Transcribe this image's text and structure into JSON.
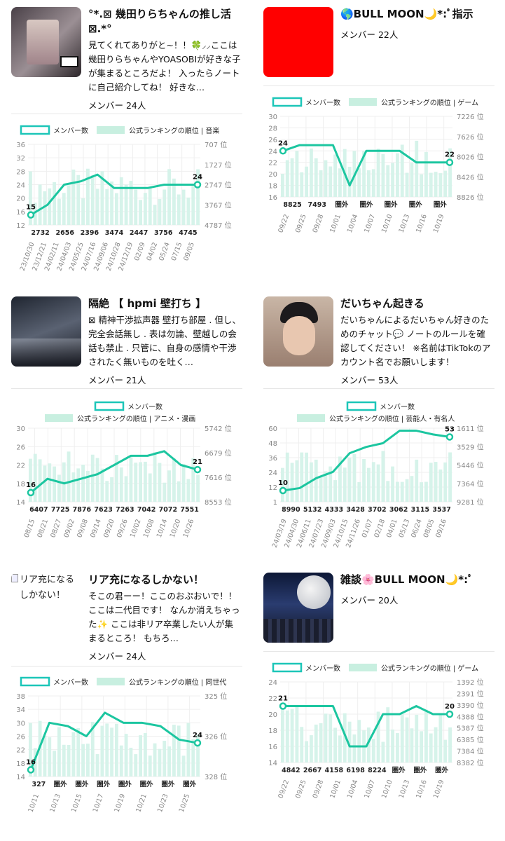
{
  "cards": [
    {
      "title": "°*.⊠ 幾田りらちゃんの推し活 ⊠.*°",
      "description": "見てくれてありがと~！！🍀⸝⸝ここは幾田りらちゃんやYOASOBIが好きな子が集まるところだよ！ 入ったらノートに自己紹介してね！ 好きな…",
      "members": "メンバー 24人",
      "thumb_color": "#8a7f86",
      "chart_data": {
        "type": "line",
        "legend": [
          "メンバー数",
          "公式ランキングの順位 | 音楽"
        ],
        "series": [
          {
            "name": "メンバー数",
            "values": [
              15,
              18,
              24,
              25,
              27,
              23,
              23,
              23,
              24,
              24,
              24
            ],
            "start_label": "15",
            "end_label": "24"
          }
        ],
        "y_ticks": [
          "36",
          "32",
          "28",
          "24",
          "20",
          "16",
          "12"
        ],
        "rank_ticks": [
          "707 位",
          "1727 位",
          "2747 位",
          "3767 位",
          "4787 位"
        ],
        "rank_labels": [
          "2732",
          "2656",
          "2396",
          "3474",
          "2447",
          "3756",
          "4745"
        ],
        "x_labels": [
          "23/10/30",
          "23/12/21",
          "24/02/11",
          "24/04/03",
          "24/05/25",
          "24/07/16",
          "24/09/06",
          "24/10/28",
          "24/12/19",
          "02/09",
          "04/02",
          "05/24",
          "07/15",
          "09/05"
        ]
      }
    },
    {
      "title": "🌎BULL MOON🌙*:ﾟ指示",
      "description": "",
      "members": "メンバー 22人",
      "thumb_color": "#ff0000",
      "chart_data": {
        "type": "line",
        "legend": [
          "メンバー数",
          "公式ランキングの順位 | ゲーム"
        ],
        "series": [
          {
            "name": "メンバー数",
            "values": [
              24,
              25,
              25,
              25,
              18,
              24,
              24,
              24,
              22,
              22,
              22
            ],
            "start_label": "24",
            "end_label": "22"
          }
        ],
        "y_ticks": [
          "30",
          "28",
          "26",
          "24",
          "22",
          "20",
          "18",
          "16"
        ],
        "rank_ticks": [
          "7226 位",
          "7626 位",
          "8026 位",
          "8426 位",
          "8826 位"
        ],
        "rank_labels": [
          "8825",
          "7493",
          "圏外",
          "圏外",
          "圏外",
          "圏外",
          "圏外"
        ],
        "x_labels": [
          "09/22",
          "09/25",
          "09/28",
          "10/01",
          "10/04",
          "10/07",
          "10/10",
          "10/13",
          "10/16",
          "10/19"
        ]
      }
    },
    {
      "title": "隔絶 【 hpmi 壁打ち 】",
      "description": "⊠ 精神干渉拡声器 壁打ち部屋 . 但し、完全会話無し . 表は勿論、壁越しの会話も禁止 . 只管に、自身の感情や干渉されたく無いものを吐く…",
      "members": "メンバー 21人",
      "thumb_color": "#3a3f4a",
      "chart_data": {
        "type": "line",
        "legend": [
          "メンバー数",
          "公式ランキングの順位 | アニメ・漫画"
        ],
        "series": [
          {
            "name": "メンバー数",
            "values": [
              16,
              19,
              18,
              19,
              20,
              22,
              24,
              24,
              25,
              22,
              21
            ],
            "start_label": "16",
            "end_label": "21"
          }
        ],
        "y_ticks": [
          "30",
          "26",
          "22",
          "18",
          "14"
        ],
        "rank_ticks": [
          "5742 位",
          "6679 位",
          "7616 位",
          "8553 位"
        ],
        "rank_labels": [
          "6407",
          "7725",
          "7876",
          "7623",
          "7263",
          "7042",
          "7072",
          "7551"
        ],
        "x_labels": [
          "08/15",
          "08/21",
          "08/27",
          "09/02",
          "09/08",
          "09/14",
          "09/20",
          "09/26",
          "10/02",
          "10/08",
          "10/14",
          "10/20",
          "10/26"
        ]
      }
    },
    {
      "title": "だいちゃん起きる",
      "description": "だいちゃんによるだいちゃん好きのためのチャット💬 ノートのルールを確認してください！ ※名前はTikTokのアカウント名でお願いします！",
      "members": "メンバー 53人",
      "thumb_color": "#b89a86",
      "chart_data": {
        "type": "line",
        "legend": [
          "メンバー数",
          "公式ランキングの順位 | 芸能人・有名人"
        ],
        "series": [
          {
            "name": "メンバー数",
            "values": [
              10,
              12,
              20,
              25,
              40,
              45,
              48,
              58,
              58,
              55,
              53
            ],
            "start_label": "10",
            "end_label": "53"
          }
        ],
        "y_ticks": [
          "60",
          "48",
          "36",
          "24",
          "12",
          "1"
        ],
        "rank_ticks": [
          "1611 位",
          "3529 位",
          "5446 位",
          "7364 位",
          "9281 位"
        ],
        "rank_labels": [
          "8990",
          "5132",
          "4333",
          "3428",
          "3702",
          "3062",
          "3115",
          "3537"
        ],
        "x_labels": [
          "24/03/19",
          "24/04/30",
          "24/06/11",
          "24/07/23",
          "24/09/03",
          "24/10/15",
          "24/11/26",
          "01/07",
          "02/18",
          "04/01",
          "05/13",
          "06/24",
          "08/05",
          "09/16"
        ]
      }
    },
    {
      "title": "リア充になるしかない！",
      "description": "そこの君ーー！ここのおぷおいで！！ ここは二代目です！ なんか消えちゃった✨ ここは非リア卒業したい人が集まるところ！ もちろ…",
      "members": "メンバー 24人",
      "thumb_alt": "リア充になるしかない！",
      "chart_data": {
        "type": "line",
        "legend": [
          "メンバー数",
          "公式ランキングの順位 | 同世代"
        ],
        "series": [
          {
            "name": "メンバー数",
            "values": [
              16,
              30,
              29,
              26,
              33,
              30,
              30,
              29,
              25,
              24
            ],
            "start_label": "16",
            "end_label": "24"
          }
        ],
        "y_ticks": [
          "38",
          "34",
          "30",
          "26",
          "22",
          "18",
          "14"
        ],
        "rank_ticks": [
          "325 位",
          "326 位",
          "328 位"
        ],
        "rank_labels": [
          "327",
          "圏外",
          "圏外",
          "圏外",
          "圏外",
          "圏外",
          "圏外",
          "圏外"
        ],
        "x_labels": [
          "10/11",
          "10/13",
          "10/15",
          "10/17",
          "10/19",
          "10/21",
          "10/23",
          "10/25"
        ]
      }
    },
    {
      "title": "雑談🌸BULL MOON🌙*:ﾟ",
      "description": "",
      "members": "メンバー 20人",
      "thumb_color": "#1d2f5a",
      "chart_data": {
        "type": "line",
        "legend": [
          "メンバー数",
          "公式ランキングの順位 | ゲーム"
        ],
        "series": [
          {
            "name": "メンバー数",
            "values": [
              21,
              21,
              21,
              21,
              16,
              16,
              20,
              20,
              21,
              20,
              20
            ],
            "start_label": "21",
            "end_label": "20"
          }
        ],
        "y_ticks": [
          "24",
          "22",
          "20",
          "18",
          "16",
          "14"
        ],
        "rank_ticks": [
          "1392 位",
          "2391 位",
          "3390 位",
          "4388 位",
          "5387 位",
          "6385 位",
          "7384 位",
          "8382 位"
        ],
        "rank_labels": [
          "4842",
          "2667",
          "4158",
          "6198",
          "8224",
          "圏外",
          "圏外",
          "圏外"
        ],
        "x_labels": [
          "09/22",
          "09/25",
          "09/28",
          "10/01",
          "10/04",
          "10/07",
          "10/10",
          "10/13",
          "10/16",
          "10/19"
        ]
      }
    }
  ]
}
